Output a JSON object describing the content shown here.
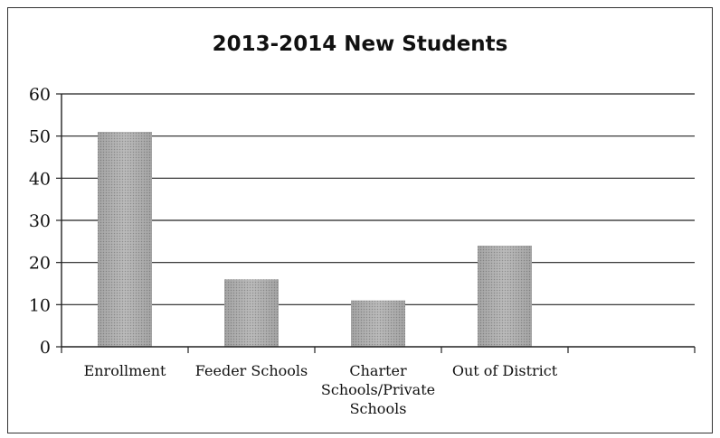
{
  "chart_data": {
    "type": "bar",
    "title": "2013-2014 New Students",
    "categories": [
      "Enrollment",
      "Feeder Schools",
      "Charter Schools/Private Schools",
      "Out of District",
      ""
    ],
    "category_label_lines": [
      [
        "Enrollment"
      ],
      [
        "Feeder Schools"
      ],
      [
        "Charter",
        "Schools/Private",
        "Schools"
      ],
      [
        "Out of District"
      ],
      []
    ],
    "values": [
      51,
      16,
      11,
      24,
      null
    ],
    "ylim": [
      0,
      60
    ],
    "yticks": [
      0,
      10,
      20,
      30,
      40,
      50,
      60
    ],
    "grid": true,
    "legend": "none",
    "bar_color": "#a9a9a9"
  }
}
